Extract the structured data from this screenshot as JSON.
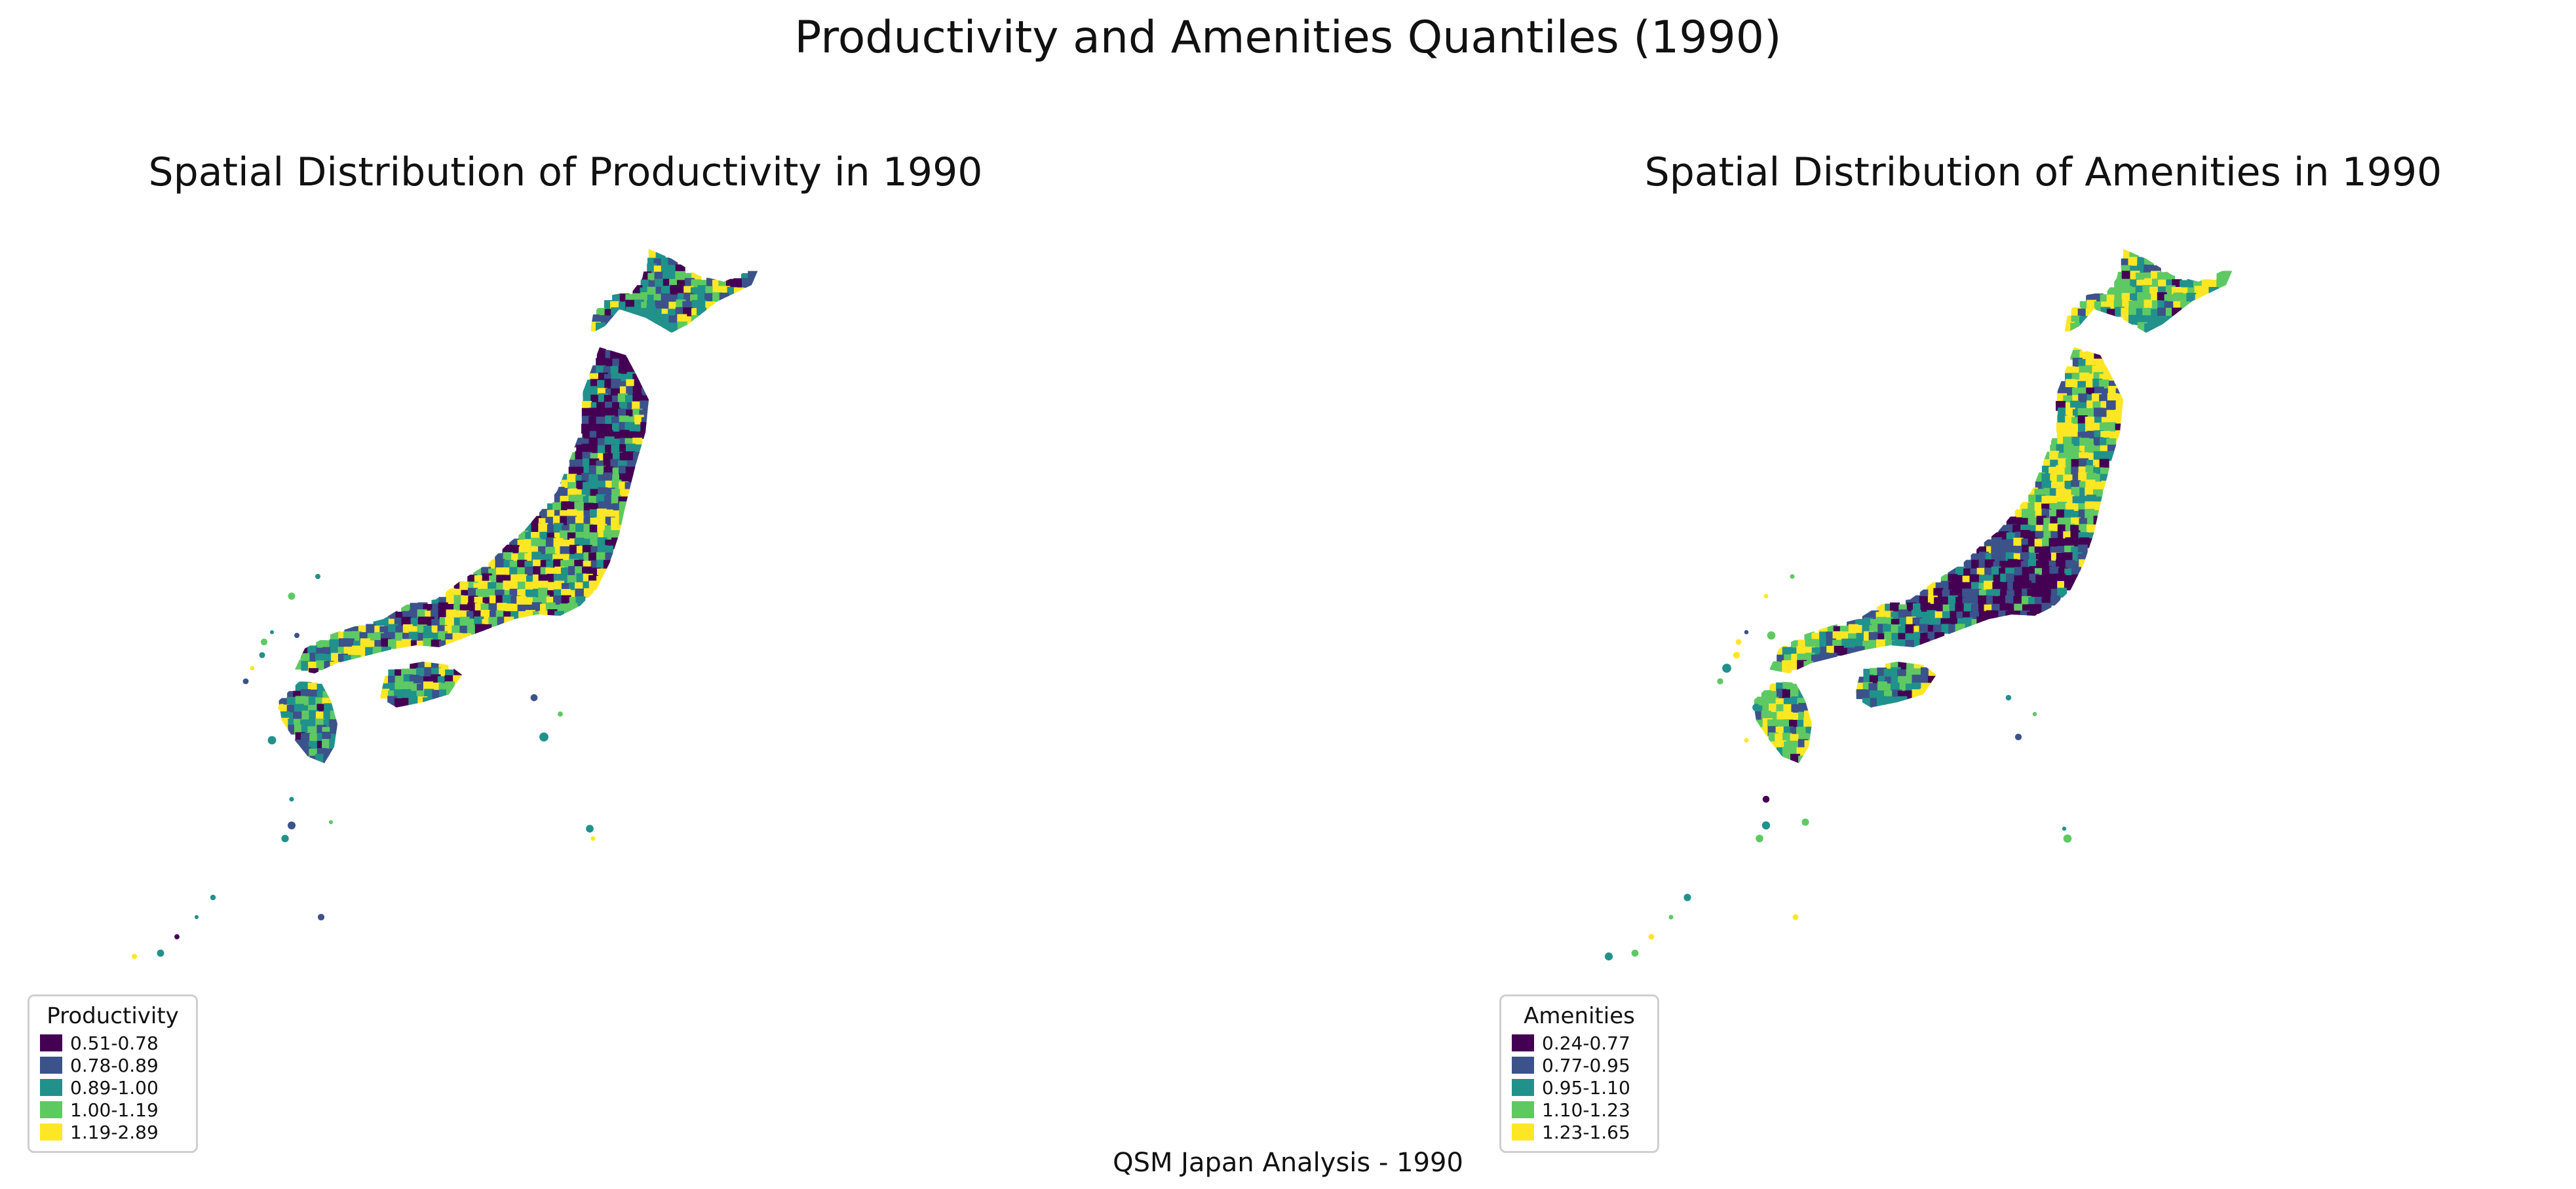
{
  "figure": {
    "suptitle": "Productivity and Amenities Quantiles (1990)",
    "footer": "QSM Japan Analysis - 1990"
  },
  "panels": [
    {
      "title": "Spatial Distribution of Productivity in 1990",
      "legend_title": "Productivity",
      "classes": [
        {
          "label": "0.51-0.78",
          "color": "#440154"
        },
        {
          "label": "0.78-0.89",
          "color": "#3b528b"
        },
        {
          "label": "0.89-1.00",
          "color": "#21918c"
        },
        {
          "label": "1.00-1.19",
          "color": "#5ec962"
        },
        {
          "label": "1.19-2.89",
          "color": "#fde725"
        }
      ]
    },
    {
      "title": "Spatial Distribution of Amenities in 1990",
      "legend_title": "Amenities",
      "classes": [
        {
          "label": "0.24-0.77",
          "color": "#440154"
        },
        {
          "label": "0.77-0.95",
          "color": "#3b528b"
        },
        {
          "label": "0.95-1.10",
          "color": "#21918c"
        },
        {
          "label": "1.10-1.23",
          "color": "#5ec962"
        },
        {
          "label": "1.23-1.65",
          "color": "#fde725"
        }
      ]
    }
  ],
  "map": {
    "region": "Japan",
    "colormap": "viridis"
  }
}
